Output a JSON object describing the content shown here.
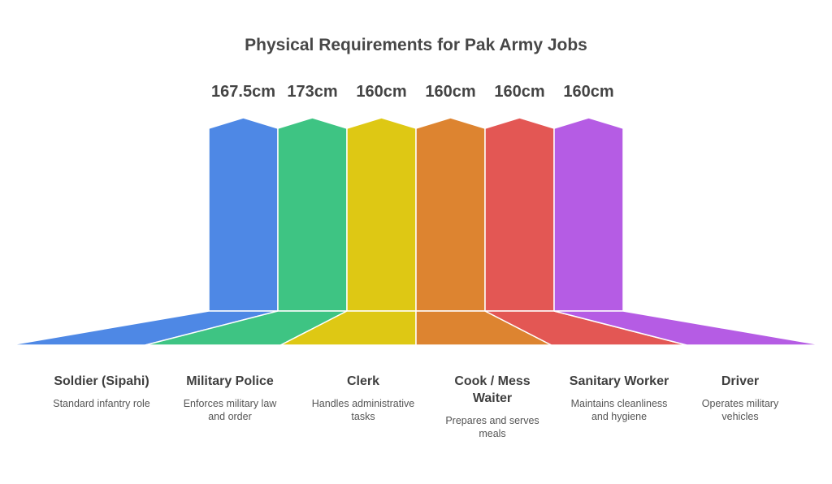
{
  "title": "Physical Requirements for Pak Army Jobs",
  "jobs": [
    {
      "name": "Soldier (Sipahi)",
      "description": "Standard infantry role",
      "height": "167.5cm",
      "color": "#4E88E5"
    },
    {
      "name": "Military Police",
      "description": "Enforces military law and order",
      "height": "173cm",
      "color": "#3EC483"
    },
    {
      "name": "Clerk",
      "description": "Handles administrative tasks",
      "height": "160cm",
      "color": "#DEC814"
    },
    {
      "name": "Cook / Mess Waiter",
      "description": "Prepares and serves meals",
      "height": "160cm",
      "color": "#DD8430"
    },
    {
      "name": "Sanitary Worker",
      "description": "Maintains cleanliness and hygiene",
      "height": "160cm",
      "color": "#E35754"
    },
    {
      "name": "Driver",
      "description": "Operates military vehicles",
      "height": "160cm",
      "color": "#B55CE4"
    }
  ]
}
